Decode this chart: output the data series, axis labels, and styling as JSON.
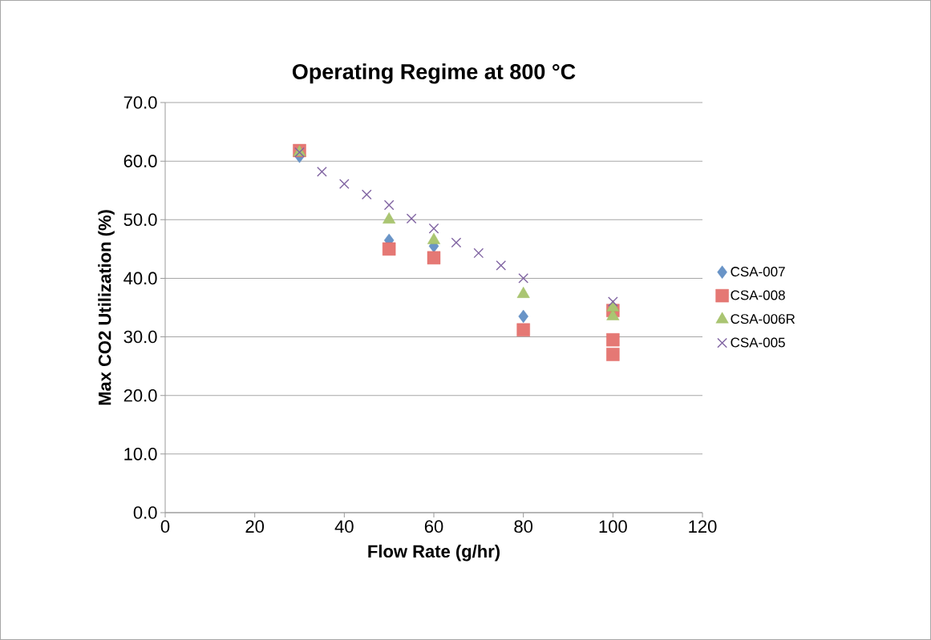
{
  "chart_data": {
    "type": "scatter",
    "title": "Operating Regime at 800 °C",
    "xlabel": "Flow Rate (g/hr)",
    "ylabel": "Max CO2 Utilization (%)",
    "xlim": [
      0,
      120
    ],
    "xticks": [
      0,
      20,
      40,
      60,
      80,
      100,
      120
    ],
    "ylim": [
      0,
      70
    ],
    "yticks": [
      {
        "value": 0,
        "label": "0.0"
      },
      {
        "value": 10,
        "label": "10.0"
      },
      {
        "value": 20,
        "label": "20.0"
      },
      {
        "value": 30,
        "label": "30.0"
      },
      {
        "value": 40,
        "label": "40.0"
      },
      {
        "value": 50,
        "label": "50.0"
      },
      {
        "value": 60,
        "label": "60.0"
      },
      {
        "value": 70,
        "label": "70.0"
      }
    ],
    "grid": "y",
    "legend": "right",
    "series": [
      {
        "name": "CSA-007",
        "color": "#4f81bd",
        "marker": "diamond",
        "x": [
          30,
          50,
          60,
          80
        ],
        "values": [
          60.8,
          46.5,
          45.5,
          33.5
        ]
      },
      {
        "name": "CSA-008",
        "color": "#e0605c",
        "marker": "square",
        "x": [
          30,
          50,
          60,
          80,
          100,
          100,
          100
        ],
        "values": [
          61.8,
          45,
          43.5,
          31.2,
          34.5,
          29.5,
          27
        ]
      },
      {
        "name": "CSA-006R",
        "color": "#9bbb59",
        "marker": "triangle",
        "x": [
          30,
          50,
          60,
          80,
          100,
          100
        ],
        "values": [
          61.5,
          50,
          46.5,
          37.3,
          33.5,
          35
        ]
      },
      {
        "name": "CSA-005",
        "color": "#8064a2",
        "marker": "cross",
        "x": [
          30,
          35,
          40,
          45,
          50,
          55,
          60,
          65,
          70,
          75,
          80,
          100
        ],
        "values": [
          61.5,
          58.2,
          56.1,
          54.3,
          52.5,
          50.2,
          48.5,
          46.1,
          44.3,
          42.2,
          40,
          36
        ]
      }
    ]
  }
}
